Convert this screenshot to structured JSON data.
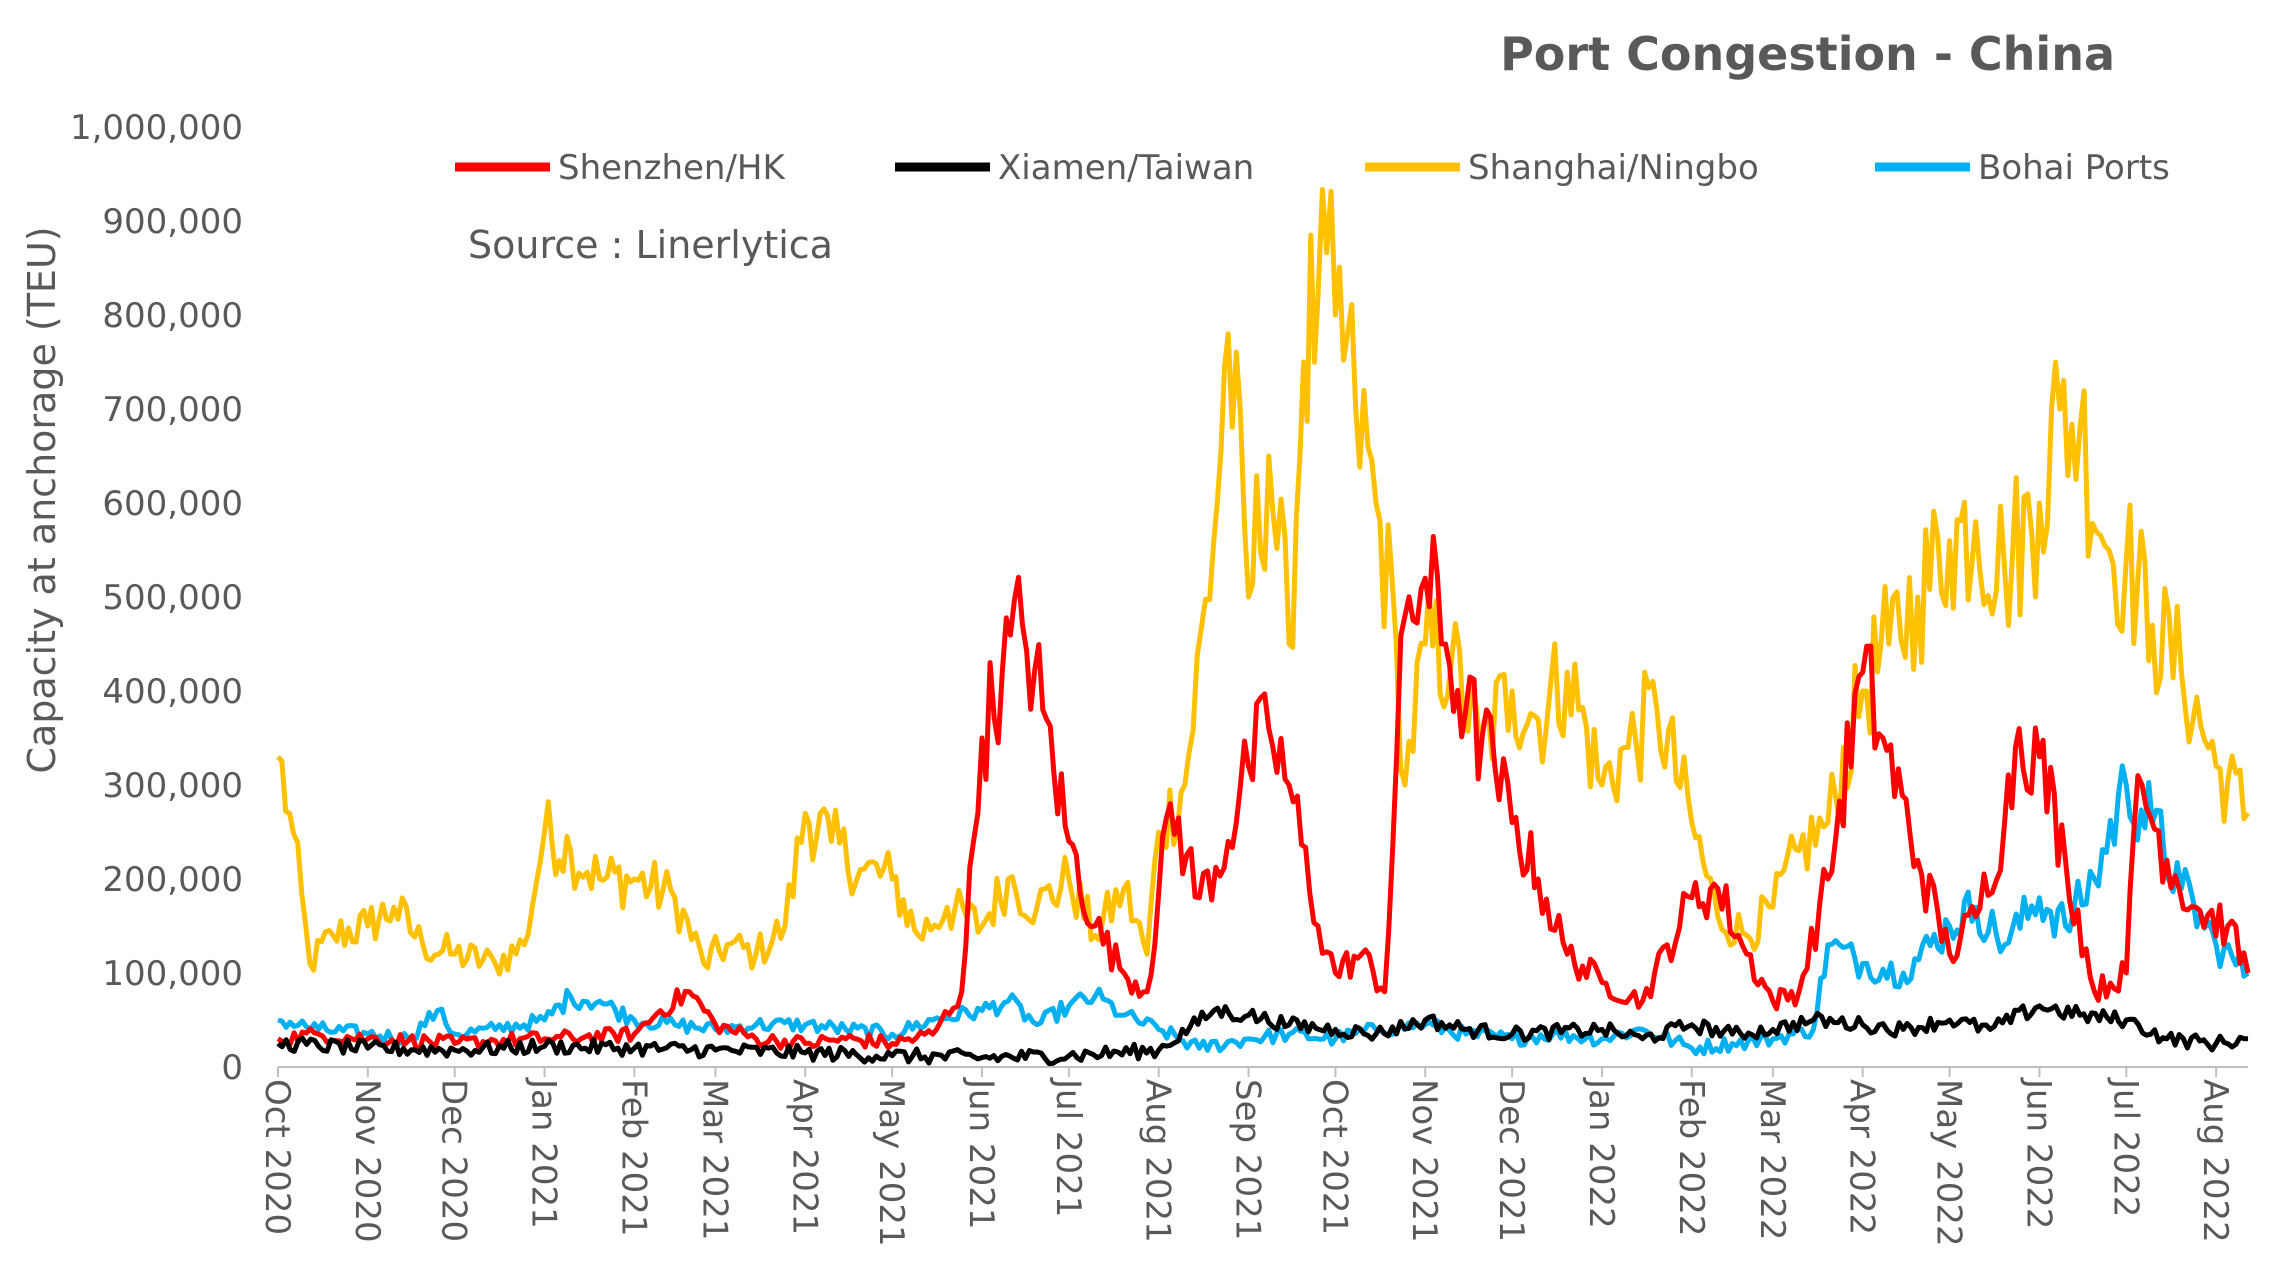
{
  "chart_data": {
    "type": "line",
    "title": "Port Congestion - China",
    "annotation": "Source : Linerlytica",
    "ylabel": "Capacity at anchorage (TEU)",
    "xlabel": "",
    "ylim": [
      0,
      1000000
    ],
    "xlim": [
      "2020-10-01",
      "2022-08-12"
    ],
    "y_ticks": [
      "0",
      "100,000",
      "200,000",
      "300,000",
      "400,000",
      "500,000",
      "600,000",
      "700,000",
      "800,000",
      "900,000",
      "1,000,000"
    ],
    "x_ticks": [
      "Oct 2020",
      "Nov 2020",
      "Dec 2020",
      "Jan 2021",
      "Feb 2021",
      "Mar 2021",
      "Apr 2021",
      "May 2021",
      "Jun 2021",
      "Jul 2021",
      "Aug 2021",
      "Sep 2021",
      "Oct 2021",
      "Nov 2021",
      "Dec 2021",
      "Jan 2022",
      "Feb 2022",
      "Mar 2022",
      "Apr 2022",
      "May 2022",
      "Jun 2022",
      "Jul 2022",
      "Aug 2022"
    ],
    "x_tick_dates": [
      "2020-10-01",
      "2020-11-01",
      "2020-12-01",
      "2021-01-01",
      "2021-02-01",
      "2021-03-01",
      "2021-04-01",
      "2021-05-01",
      "2021-06-01",
      "2021-07-01",
      "2021-08-01",
      "2021-09-01",
      "2021-10-01",
      "2021-11-01",
      "2021-12-01",
      "2022-01-01",
      "2022-02-01",
      "2022-03-01",
      "2022-04-01",
      "2022-05-01",
      "2022-06-01",
      "2022-07-01",
      "2022-08-01"
    ],
    "grid": false,
    "legend_position": "top",
    "series": [
      {
        "name": "Shenzhen/HK",
        "color": "#ff0000",
        "points": [
          [
            "2020-10-01",
            30000
          ],
          [
            "2020-10-15",
            35000
          ],
          [
            "2020-11-01",
            30000
          ],
          [
            "2020-11-15",
            28000
          ],
          [
            "2020-12-01",
            25000
          ],
          [
            "2020-12-15",
            28000
          ],
          [
            "2021-01-01",
            30000
          ],
          [
            "2021-01-15",
            32000
          ],
          [
            "2021-02-01",
            35000
          ],
          [
            "2021-02-10",
            60000
          ],
          [
            "2021-02-20",
            80000
          ],
          [
            "2021-03-01",
            45000
          ],
          [
            "2021-03-15",
            30000
          ],
          [
            "2021-04-01",
            25000
          ],
          [
            "2021-04-15",
            30000
          ],
          [
            "2021-05-01",
            25000
          ],
          [
            "2021-05-15",
            35000
          ],
          [
            "2021-05-25",
            80000
          ],
          [
            "2021-06-01",
            350000
          ],
          [
            "2021-06-08",
            420000
          ],
          [
            "2021-06-15",
            470000
          ],
          [
            "2021-06-22",
            380000
          ],
          [
            "2021-07-01",
            240000
          ],
          [
            "2021-07-10",
            150000
          ],
          [
            "2021-07-20",
            100000
          ],
          [
            "2021-07-28",
            80000
          ],
          [
            "2021-08-05",
            280000
          ],
          [
            "2021-08-15",
            180000
          ],
          [
            "2021-08-25",
            240000
          ],
          [
            "2021-09-01",
            320000
          ],
          [
            "2021-09-08",
            360000
          ],
          [
            "2021-09-15",
            300000
          ],
          [
            "2021-09-25",
            150000
          ],
          [
            "2021-10-01",
            100000
          ],
          [
            "2021-10-10",
            120000
          ],
          [
            "2021-10-18",
            80000
          ],
          [
            "2021-10-25",
            480000
          ],
          [
            "2021-11-01",
            520000
          ],
          [
            "2021-11-08",
            450000
          ],
          [
            "2021-11-15",
            380000
          ],
          [
            "2021-11-25",
            320000
          ],
          [
            "2021-12-01",
            260000
          ],
          [
            "2021-12-10",
            200000
          ],
          [
            "2021-12-20",
            120000
          ],
          [
            "2022-01-01",
            90000
          ],
          [
            "2022-01-15",
            70000
          ],
          [
            "2022-02-01",
            180000
          ],
          [
            "2022-02-10",
            190000
          ],
          [
            "2022-02-20",
            120000
          ],
          [
            "2022-03-01",
            70000
          ],
          [
            "2022-03-10",
            80000
          ],
          [
            "2022-03-20",
            200000
          ],
          [
            "2022-04-01",
            420000
          ],
          [
            "2022-04-08",
            350000
          ],
          [
            "2022-04-20",
            220000
          ],
          [
            "2022-05-01",
            120000
          ],
          [
            "2022-05-10",
            160000
          ],
          [
            "2022-05-20",
            260000
          ],
          [
            "2022-05-25",
            360000
          ],
          [
            "2022-06-01",
            330000
          ],
          [
            "2022-06-10",
            220000
          ],
          [
            "2022-06-20",
            80000
          ],
          [
            "2022-07-01",
            100000
          ],
          [
            "2022-07-05",
            310000
          ],
          [
            "2022-07-15",
            220000
          ],
          [
            "2022-07-25",
            170000
          ],
          [
            "2022-08-05",
            150000
          ],
          [
            "2022-08-12",
            100000
          ]
        ]
      },
      {
        "name": "Xiamen/Taiwan",
        "color": "#000000",
        "points": [
          [
            "2020-10-01",
            25000
          ],
          [
            "2020-11-01",
            20000
          ],
          [
            "2020-12-01",
            18000
          ],
          [
            "2021-01-01",
            22000
          ],
          [
            "2021-02-01",
            20000
          ],
          [
            "2021-03-01",
            18000
          ],
          [
            "2021-04-01",
            15000
          ],
          [
            "2021-05-01",
            12000
          ],
          [
            "2021-06-01",
            10000
          ],
          [
            "2021-07-01",
            12000
          ],
          [
            "2021-08-01",
            18000
          ],
          [
            "2021-08-20",
            60000
          ],
          [
            "2021-09-01",
            55000
          ],
          [
            "2021-09-15",
            45000
          ],
          [
            "2021-10-01",
            40000
          ],
          [
            "2021-10-15",
            35000
          ],
          [
            "2021-11-01",
            50000
          ],
          [
            "2021-11-15",
            40000
          ],
          [
            "2021-12-01",
            35000
          ],
          [
            "2022-01-01",
            40000
          ],
          [
            "2022-01-15",
            30000
          ],
          [
            "2022-02-01",
            45000
          ],
          [
            "2022-02-15",
            35000
          ],
          [
            "2022-03-01",
            40000
          ],
          [
            "2022-03-15",
            50000
          ],
          [
            "2022-04-01",
            45000
          ],
          [
            "2022-04-15",
            40000
          ],
          [
            "2022-05-01",
            50000
          ],
          [
            "2022-05-15",
            40000
          ],
          [
            "2022-06-01",
            65000
          ],
          [
            "2022-06-15",
            55000
          ],
          [
            "2022-07-01",
            50000
          ],
          [
            "2022-07-15",
            30000
          ],
          [
            "2022-08-01",
            25000
          ],
          [
            "2022-08-12",
            30000
          ]
        ]
      },
      {
        "name": "Shanghai/Ningbo",
        "color": "#ffc000",
        "points": [
          [
            "2020-10-01",
            330000
          ],
          [
            "2020-10-05",
            270000
          ],
          [
            "2020-10-12",
            110000
          ],
          [
            "2020-10-20",
            140000
          ],
          [
            "2020-11-01",
            150000
          ],
          [
            "2020-11-10",
            170000
          ],
          [
            "2020-11-20",
            130000
          ],
          [
            "2020-12-01",
            120000
          ],
          [
            "2020-12-15",
            110000
          ],
          [
            "2020-12-25",
            130000
          ],
          [
            "2021-01-01",
            250000
          ],
          [
            "2021-01-10",
            230000
          ],
          [
            "2021-01-20",
            200000
          ],
          [
            "2021-02-01",
            200000
          ],
          [
            "2021-02-15",
            180000
          ],
          [
            "2021-02-25",
            110000
          ],
          [
            "2021-03-05",
            130000
          ],
          [
            "2021-03-15",
            120000
          ],
          [
            "2021-03-25",
            150000
          ],
          [
            "2021-04-01",
            270000
          ],
          [
            "2021-04-10",
            240000
          ],
          [
            "2021-04-20",
            210000
          ],
          [
            "2021-05-01",
            200000
          ],
          [
            "2021-05-10",
            140000
          ],
          [
            "2021-05-20",
            170000
          ],
          [
            "2021-06-01",
            150000
          ],
          [
            "2021-06-10",
            200000
          ],
          [
            "2021-06-20",
            170000
          ],
          [
            "2021-07-01",
            200000
          ],
          [
            "2021-07-10",
            140000
          ],
          [
            "2021-07-20",
            190000
          ],
          [
            "2021-07-28",
            120000
          ],
          [
            "2021-08-01",
            250000
          ],
          [
            "2021-08-10",
            300000
          ],
          [
            "2021-08-20",
            560000
          ],
          [
            "2021-08-25",
            780000
          ],
          [
            "2021-09-01",
            500000
          ],
          [
            "2021-09-08",
            650000
          ],
          [
            "2021-09-15",
            450000
          ],
          [
            "2021-09-20",
            750000
          ],
          [
            "2021-09-25",
            820000
          ],
          [
            "2021-10-01",
            800000
          ],
          [
            "2021-10-08",
            700000
          ],
          [
            "2021-10-15",
            600000
          ],
          [
            "2021-10-22",
            450000
          ],
          [
            "2021-10-25",
            300000
          ],
          [
            "2021-11-01",
            450000
          ],
          [
            "2021-11-10",
            430000
          ],
          [
            "2021-11-20",
            340000
          ],
          [
            "2021-12-01",
            400000
          ],
          [
            "2021-12-10",
            370000
          ],
          [
            "2021-12-20",
            420000
          ],
          [
            "2022-01-01",
            300000
          ],
          [
            "2022-01-10",
            340000
          ],
          [
            "2022-01-20",
            380000
          ],
          [
            "2022-02-01",
            260000
          ],
          [
            "2022-02-10",
            160000
          ],
          [
            "2022-02-20",
            140000
          ],
          [
            "2022-03-01",
            170000
          ],
          [
            "2022-03-10",
            230000
          ],
          [
            "2022-03-20",
            260000
          ],
          [
            "2022-04-01",
            400000
          ],
          [
            "2022-04-10",
            450000
          ],
          [
            "2022-04-20",
            500000
          ],
          [
            "2022-05-01",
            560000
          ],
          [
            "2022-05-10",
            580000
          ],
          [
            "2022-05-20",
            530000
          ],
          [
            "2022-06-01",
            600000
          ],
          [
            "2022-06-08",
            700000
          ],
          [
            "2022-06-15",
            680000
          ],
          [
            "2022-06-25",
            550000
          ],
          [
            "2022-07-01",
            540000
          ],
          [
            "2022-07-10",
            470000
          ],
          [
            "2022-07-20",
            420000
          ],
          [
            "2022-08-01",
            320000
          ],
          [
            "2022-08-12",
            270000
          ]
        ]
      },
      {
        "name": "Bohai Ports",
        "color": "#00b0f0",
        "points": [
          [
            "2020-10-01",
            50000
          ],
          [
            "2020-10-15",
            40000
          ],
          [
            "2020-11-01",
            35000
          ],
          [
            "2020-11-15",
            30000
          ],
          [
            "2020-11-25",
            60000
          ],
          [
            "2020-12-01",
            35000
          ],
          [
            "2020-12-15",
            40000
          ],
          [
            "2021-01-01",
            50000
          ],
          [
            "2021-01-10",
            75000
          ],
          [
            "2021-01-20",
            70000
          ],
          [
            "2021-02-01",
            50000
          ],
          [
            "2021-02-15",
            45000
          ],
          [
            "2021-03-01",
            40000
          ],
          [
            "2021-03-15",
            45000
          ],
          [
            "2021-04-01",
            45000
          ],
          [
            "2021-04-15",
            40000
          ],
          [
            "2021-05-01",
            35000
          ],
          [
            "2021-05-15",
            50000
          ],
          [
            "2021-06-01",
            60000
          ],
          [
            "2021-06-10",
            70000
          ],
          [
            "2021-06-20",
            45000
          ],
          [
            "2021-07-01",
            65000
          ],
          [
            "2021-07-10",
            75000
          ],
          [
            "2021-07-20",
            55000
          ],
          [
            "2021-08-01",
            40000
          ],
          [
            "2021-08-15",
            20000
          ],
          [
            "2021-09-01",
            30000
          ],
          [
            "2021-09-15",
            35000
          ],
          [
            "2021-10-01",
            30000
          ],
          [
            "2021-10-15",
            40000
          ],
          [
            "2021-11-01",
            45000
          ],
          [
            "2021-11-15",
            35000
          ],
          [
            "2021-12-01",
            30000
          ],
          [
            "2021-12-15",
            35000
          ],
          [
            "2022-01-01",
            30000
          ],
          [
            "2022-01-15",
            40000
          ],
          [
            "2022-02-01",
            20000
          ],
          [
            "2022-02-15",
            25000
          ],
          [
            "2022-03-01",
            30000
          ],
          [
            "2022-03-15",
            40000
          ],
          [
            "2022-03-20",
            130000
          ],
          [
            "2022-04-01",
            110000
          ],
          [
            "2022-04-15",
            100000
          ],
          [
            "2022-05-01",
            150000
          ],
          [
            "2022-05-10",
            170000
          ],
          [
            "2022-05-20",
            130000
          ],
          [
            "2022-06-01",
            180000
          ],
          [
            "2022-06-10",
            150000
          ],
          [
            "2022-06-20",
            200000
          ],
          [
            "2022-07-01",
            300000
          ],
          [
            "2022-07-10",
            260000
          ],
          [
            "2022-07-20",
            190000
          ],
          [
            "2022-08-01",
            130000
          ],
          [
            "2022-08-12",
            100000
          ]
        ]
      }
    ]
  }
}
